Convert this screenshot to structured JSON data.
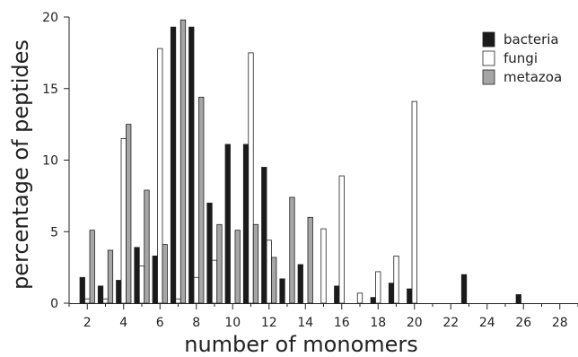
{
  "chart_data": {
    "type": "bar",
    "xlabel": "number of monomers",
    "ylabel": "percentage of peptides",
    "ylim": [
      0,
      20
    ],
    "xlim": [
      1,
      29
    ],
    "x_ticks": [
      2,
      4,
      6,
      8,
      10,
      12,
      14,
      16,
      18,
      20,
      22,
      24,
      26,
      28
    ],
    "y_ticks": [
      0,
      5,
      10,
      15,
      20
    ],
    "legend_position": "top-right",
    "series": [
      {
        "name": "bacteria",
        "color": "#1a1a1a",
        "points": [
          {
            "x": 2,
            "y": 1.8
          },
          {
            "x": 3,
            "y": 1.2
          },
          {
            "x": 4,
            "y": 1.6
          },
          {
            "x": 5,
            "y": 3.9
          },
          {
            "x": 6,
            "y": 3.3
          },
          {
            "x": 7,
            "y": 19.3
          },
          {
            "x": 8,
            "y": 19.3
          },
          {
            "x": 9,
            "y": 7.0
          },
          {
            "x": 10,
            "y": 11.1
          },
          {
            "x": 11,
            "y": 11.1
          },
          {
            "x": 12,
            "y": 9.5
          },
          {
            "x": 13,
            "y": 1.7
          },
          {
            "x": 14,
            "y": 2.7
          },
          {
            "x": 16,
            "y": 1.2
          },
          {
            "x": 18,
            "y": 0.4
          },
          {
            "x": 19,
            "y": 1.4
          },
          {
            "x": 20,
            "y": 1.0
          },
          {
            "x": 23,
            "y": 2.0
          },
          {
            "x": 26,
            "y": 0.6
          }
        ]
      },
      {
        "name": "fungi",
        "color": "#ffffff",
        "points": [
          {
            "x": 2,
            "y": 0.3
          },
          {
            "x": 3,
            "y": 0.3
          },
          {
            "x": 4,
            "y": 11.5
          },
          {
            "x": 5,
            "y": 2.6
          },
          {
            "x": 6,
            "y": 17.8
          },
          {
            "x": 7,
            "y": 0.3
          },
          {
            "x": 8,
            "y": 1.8
          },
          {
            "x": 9,
            "y": 3.0
          },
          {
            "x": 11,
            "y": 17.5
          },
          {
            "x": 12,
            "y": 4.4
          },
          {
            "x": 15,
            "y": 5.2
          },
          {
            "x": 16,
            "y": 8.9
          },
          {
            "x": 17,
            "y": 0.7
          },
          {
            "x": 18,
            "y": 2.2
          },
          {
            "x": 19,
            "y": 3.3
          },
          {
            "x": 20,
            "y": 14.1
          }
        ]
      },
      {
        "name": "metazoa",
        "color": "#a6a6a6",
        "points": [
          {
            "x": 2,
            "y": 5.1
          },
          {
            "x": 3,
            "y": 3.7
          },
          {
            "x": 4,
            "y": 12.5
          },
          {
            "x": 5,
            "y": 7.9
          },
          {
            "x": 6,
            "y": 4.1
          },
          {
            "x": 7,
            "y": 19.8
          },
          {
            "x": 8,
            "y": 14.4
          },
          {
            "x": 9,
            "y": 5.5
          },
          {
            "x": 10,
            "y": 5.1
          },
          {
            "x": 11,
            "y": 5.5
          },
          {
            "x": 12,
            "y": 3.2
          },
          {
            "x": 13,
            "y": 7.4
          },
          {
            "x": 14,
            "y": 6.0
          }
        ]
      }
    ]
  }
}
